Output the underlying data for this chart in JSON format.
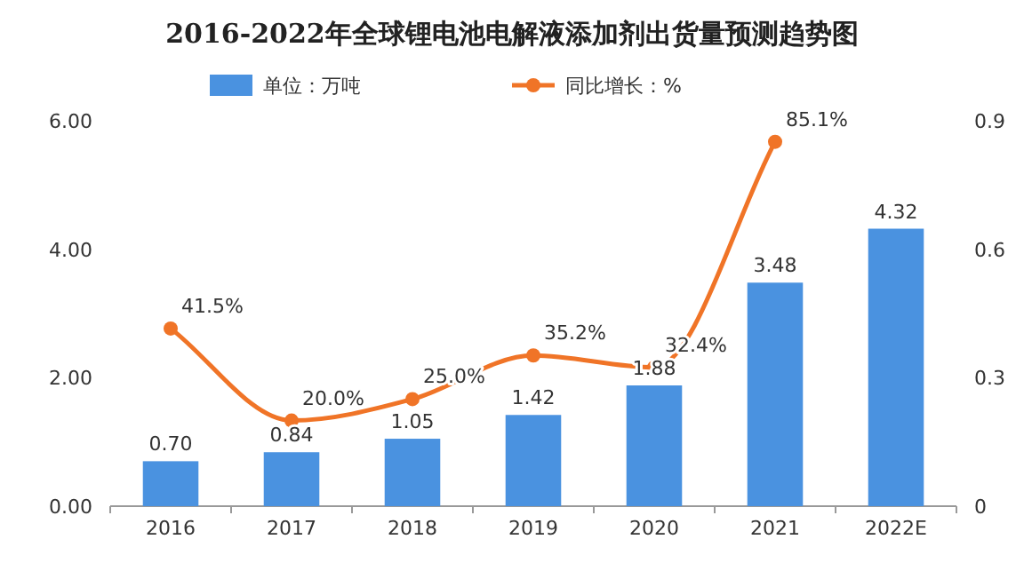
{
  "chart_data": {
    "type": "bar",
    "title": "2016-2022年全球锂电池电解液添加剂出货量预测趋势图",
    "categories": [
      "2016",
      "2017",
      "2018",
      "2019",
      "2020",
      "2021",
      "2022E"
    ],
    "series": [
      {
        "name": "单位：万吨",
        "color": "#4a92e0",
        "values": [
          0.7,
          0.84,
          1.05,
          1.42,
          1.88,
          3.48,
          4.32
        ],
        "value_labels": [
          "0.70",
          "0.84",
          "1.05",
          "1.42",
          "1.88",
          "3.48",
          "4.32"
        ]
      },
      {
        "name": "同比增长：%",
        "type": "line",
        "axis": "y2",
        "color": "#f07427",
        "values": [
          0.415,
          0.2,
          0.25,
          0.352,
          0.324,
          0.851,
          null
        ],
        "value_labels": [
          "41.5%",
          "20.0%",
          "25.0%",
          "35.2%",
          "32.4%",
          "85.1%",
          null
        ]
      }
    ],
    "ylim": [
      0,
      6
    ],
    "yticks": [
      {
        "value": 0,
        "label": "0.00"
      },
      {
        "value": 2,
        "label": "2.00"
      },
      {
        "value": 4,
        "label": "4.00"
      },
      {
        "value": 6,
        "label": "6.00"
      }
    ],
    "y2lim": [
      0,
      0.9
    ],
    "y2ticks": [
      0,
      0.3,
      0.6,
      0.9
    ],
    "legend": "top",
    "marker": "circle",
    "grid": false
  }
}
